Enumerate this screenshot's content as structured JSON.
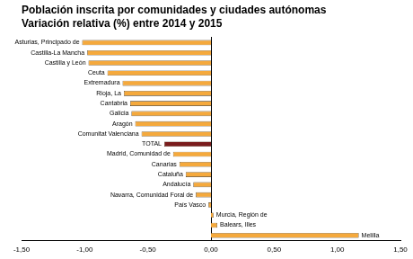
{
  "chart_data": {
    "type": "bar",
    "orientation": "horizontal",
    "title": "Población inscrita por comunidades y ciudades autónomas",
    "subtitle": "Variación relativa (%) entre 2014 y 2015",
    "categories": [
      "Asturias, Principado de",
      "Castilla-La Mancha",
      "Castilla y León",
      "Ceuta",
      "Extremadura",
      "Rioja, La",
      "Cantabria",
      "Galicia",
      "Aragón",
      "Comunitat Valenciana",
      "TOTAL",
      "Madrid, Comunidad de",
      "Canarias",
      "Cataluña",
      "Andalucía",
      "Navarra, Comunidad Foral de",
      "País Vasco",
      "Murcia, Región de",
      "Balears, Illes",
      "Melilla"
    ],
    "values": [
      -1.02,
      -0.98,
      -0.97,
      -0.82,
      -0.7,
      -0.69,
      -0.64,
      -0.63,
      -0.6,
      -0.55,
      -0.37,
      -0.3,
      -0.25,
      -0.2,
      -0.14,
      -0.12,
      -0.02,
      0.02,
      0.05,
      1.17
    ],
    "colors": [
      "#f5a93c",
      "#f5a93c",
      "#f5a93c",
      "#f5a93c",
      "#f5a93c",
      "#f5a93c",
      "#f5a93c",
      "#f5a93c",
      "#f5a93c",
      "#f5a93c",
      "#7a1c1c",
      "#f5a93c",
      "#f5a93c",
      "#f5a93c",
      "#f5a93c",
      "#f5a93c",
      "#f5a93c",
      "#f5a93c",
      "#f5a93c",
      "#f5a93c"
    ],
    "xlim": [
      -1.5,
      1.5
    ],
    "xticks": [
      {
        "value": -1.5,
        "label": "-1,50"
      },
      {
        "value": -1.0,
        "label": "-1,00"
      },
      {
        "value": -0.5,
        "label": "-0,50"
      },
      {
        "value": 0,
        "label": "0,00"
      },
      {
        "value": 0.5,
        "label": "0,50"
      },
      {
        "value": 1.0,
        "label": "1,00"
      },
      {
        "value": 1.5,
        "label": "1,50"
      }
    ],
    "grid": false
  }
}
